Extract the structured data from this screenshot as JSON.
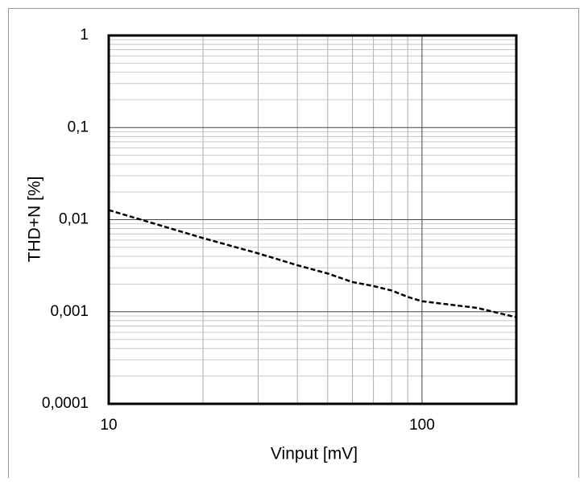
{
  "chart_data": {
    "type": "line",
    "x_label": "Vinput [mV]",
    "y_label": "THD+N [%]",
    "x": [
      10,
      20,
      30,
      40,
      50,
      60,
      70,
      80,
      90,
      100,
      150,
      200
    ],
    "series": [
      {
        "color": "#000000",
        "values": [
          0.0127,
          0.0063,
          0.0043,
          0.0032,
          0.0026,
          0.0021,
          0.0019,
          0.0017,
          0.00145,
          0.0013,
          0.0011,
          0.00087
        ]
      }
    ],
    "xlim": [
      10,
      200
    ],
    "ylim": [
      0.0001,
      1
    ],
    "xticks": [
      10,
      100
    ],
    "yticks": [
      {
        "value": 0.0001,
        "label": "0,0001"
      },
      {
        "value": 0.001,
        "label": "0,001"
      },
      {
        "value": 0.01,
        "label": "0,01"
      },
      {
        "value": 0.1,
        "label": "0,1"
      },
      1
    ],
    "x_log": true,
    "y_log": true,
    "grid": true,
    "minor_grid": true,
    "line_style": "dashed"
  }
}
